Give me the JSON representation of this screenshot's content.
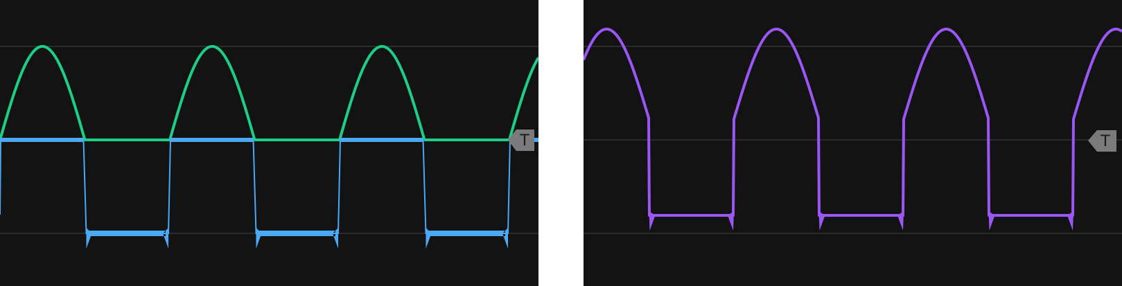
{
  "scopes": [
    {
      "name": "left-scope",
      "trigger_label": "T",
      "traces": [
        {
          "name": "",
          "color": "#1dcf86",
          "shape": "half-wave-rectified"
        },
        {
          "name": "",
          "color": "#4aaaf7",
          "shape": "square-with-ringing"
        }
      ]
    },
    {
      "name": "right-scope",
      "trigger_label": "T",
      "traces": [
        {
          "name": "",
          "color": "#9b57f5",
          "shape": "sine-plus-square"
        }
      ]
    }
  ],
  "colors": {
    "background": "#131314",
    "gridline": "#2c2c2e",
    "trigger_marker": "#7a7a7c",
    "trigger_text": "#1a1a1a",
    "separator": "#ffffff"
  }
}
